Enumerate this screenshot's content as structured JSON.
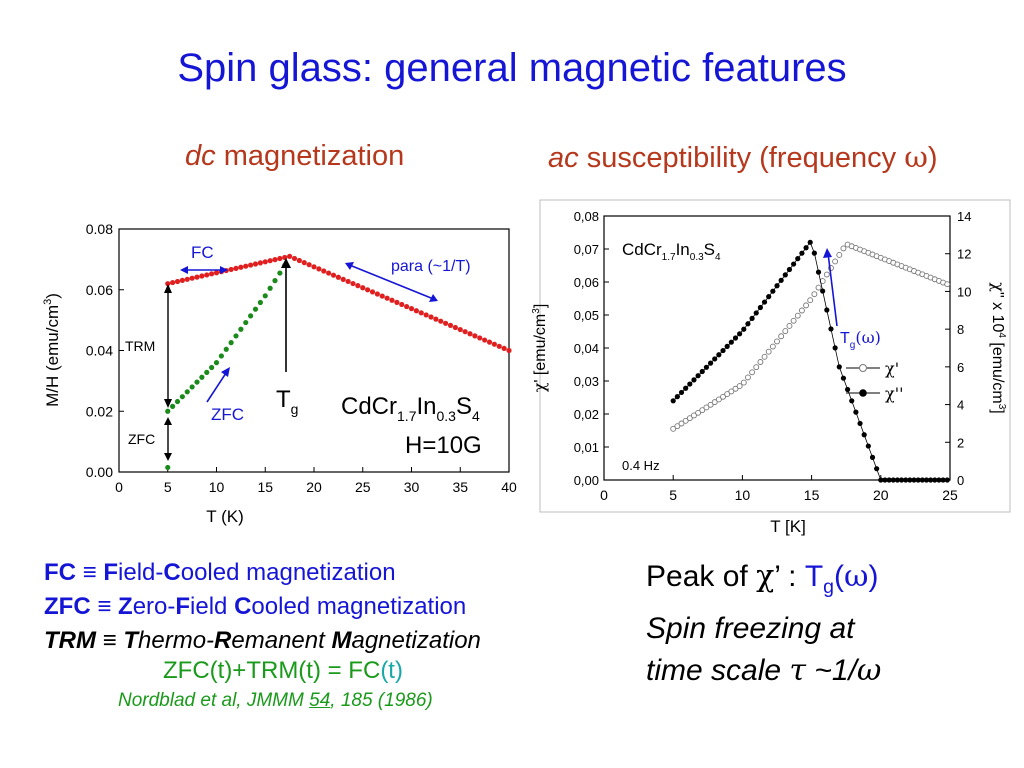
{
  "slide": {
    "title": "Spin glass: general magnetic features",
    "subtitle_left": {
      "italic": "dc",
      "text": " magnetization"
    },
    "subtitle_right": {
      "italic": "ac",
      "text": " susceptibility (frequency ",
      "symbol": "ω",
      "close": ")"
    }
  },
  "definitions": [
    {
      "key": "FC",
      "eq": "≡",
      "parts": [
        [
          "F",
          "ield-"
        ],
        [
          "C",
          "ooled magnetization"
        ]
      ]
    },
    {
      "key": "ZFC",
      "eq": "≡",
      "parts": [
        [
          "Z",
          "ero-"
        ],
        [
          "F",
          "ield "
        ],
        [
          "C",
          "ooled magnetization"
        ]
      ]
    },
    {
      "key": "TRM",
      "eq": "≡",
      "parts": [
        [
          "T",
          "hermo-"
        ],
        [
          "R",
          "emanent "
        ],
        [
          "M",
          "agnetization"
        ]
      ]
    }
  ],
  "equation": {
    "main": "ZFC(t)+TRM(t) = FC",
    "tail": "(t)"
  },
  "reference": {
    "pre": "Nordblad et al, JMMM ",
    "vol": "54",
    "post": ", 185 (1986)"
  },
  "peak_note": {
    "line1_a": "Peak of ",
    "chi": "χ",
    "line1_b": "’ : ",
    "tg": "T",
    "tg_sub": "g",
    "omega_open": "(",
    "omega": "ω",
    "omega_close": ")",
    "line2": "Spin freezing at",
    "line3_a": "time scale ",
    "tau": "τ",
    "line3_b": " ~1/",
    "omega2": "ω"
  },
  "chart_data": [
    {
      "type": "scatter",
      "xlabel": "T (K)",
      "ylabel": "M/H (emu/cm3)",
      "xlim": [
        0,
        40
      ],
      "ylim": [
        0,
        0.08
      ],
      "xticks": [
        "0",
        "5",
        "10",
        "15",
        "20",
        "25",
        "30",
        "35",
        "40"
      ],
      "yticks": [
        "0.00",
        "0.02",
        "0.04",
        "0.06",
        "0.08"
      ],
      "colors": {
        "fc": "#e02020",
        "zfc": "#1a8a1a",
        "annot": "#1515d6"
      },
      "series": [
        {
          "name": "FC",
          "x": [
            5,
            17.5,
            40
          ],
          "y": [
            0.062,
            0.071,
            0.04
          ]
        },
        {
          "name": "ZFC",
          "x": [
            5,
            10,
            15,
            17
          ],
          "y": [
            0.02,
            0.036,
            0.058,
            0.068
          ]
        }
      ],
      "annotations": {
        "fc": "FC",
        "zfc": "ZFC",
        "para": "para (~1/T)",
        "trm": "TRM",
        "zfc_small": "ZFC",
        "tg": "T",
        "tg_sub": "g",
        "compound": {
          "a": "CdCr",
          "s1": "1.7",
          "b": "In",
          "s2": "0.3",
          "c": "S",
          "s3": "4"
        },
        "field": "H=10G"
      }
    },
    {
      "type": "scatter",
      "xlabel": "T [K]",
      "ylabel_left": "χ' [emu/cm3]",
      "ylabel_right": "χ'' x 10^4 [emu/cm3]",
      "xlim": [
        0,
        25
      ],
      "ylim": [
        0,
        0.08
      ],
      "ylim_right": [
        0,
        14
      ],
      "xticks": [
        "0",
        "5",
        "10",
        "15",
        "20",
        "25"
      ],
      "yticks": [
        "0,00",
        "0,01",
        "0,02",
        "0,03",
        "0,04",
        "0,05",
        "0,06",
        "0,07",
        "0,08"
      ],
      "yticks_right": [
        "0",
        "2",
        "4",
        "6",
        "8",
        "10",
        "12",
        "14"
      ],
      "series": [
        {
          "name": "χ'",
          "x": [
            5,
            10,
            15,
            17.5,
            25
          ],
          "y": [
            0.0155,
            0.029,
            0.055,
            0.0715,
            0.059
          ]
        },
        {
          "name": "χ''",
          "x": [
            5,
            10,
            15,
            17,
            20,
            25
          ],
          "y": [
            4.2,
            7.9,
            12.7,
            6.0,
            0,
            0
          ]
        }
      ],
      "annotations": {
        "compound": {
          "a": "CdCr",
          "s1": "1.7",
          "b": "In",
          "s2": "0.3",
          "c": "S",
          "s3": "4"
        },
        "freq": "0.4 Hz",
        "tg": "T",
        "tg_sub": "g",
        "tg_omega": "(ω)",
        "legend1": "χ'",
        "legend2": "χ''"
      }
    }
  ]
}
